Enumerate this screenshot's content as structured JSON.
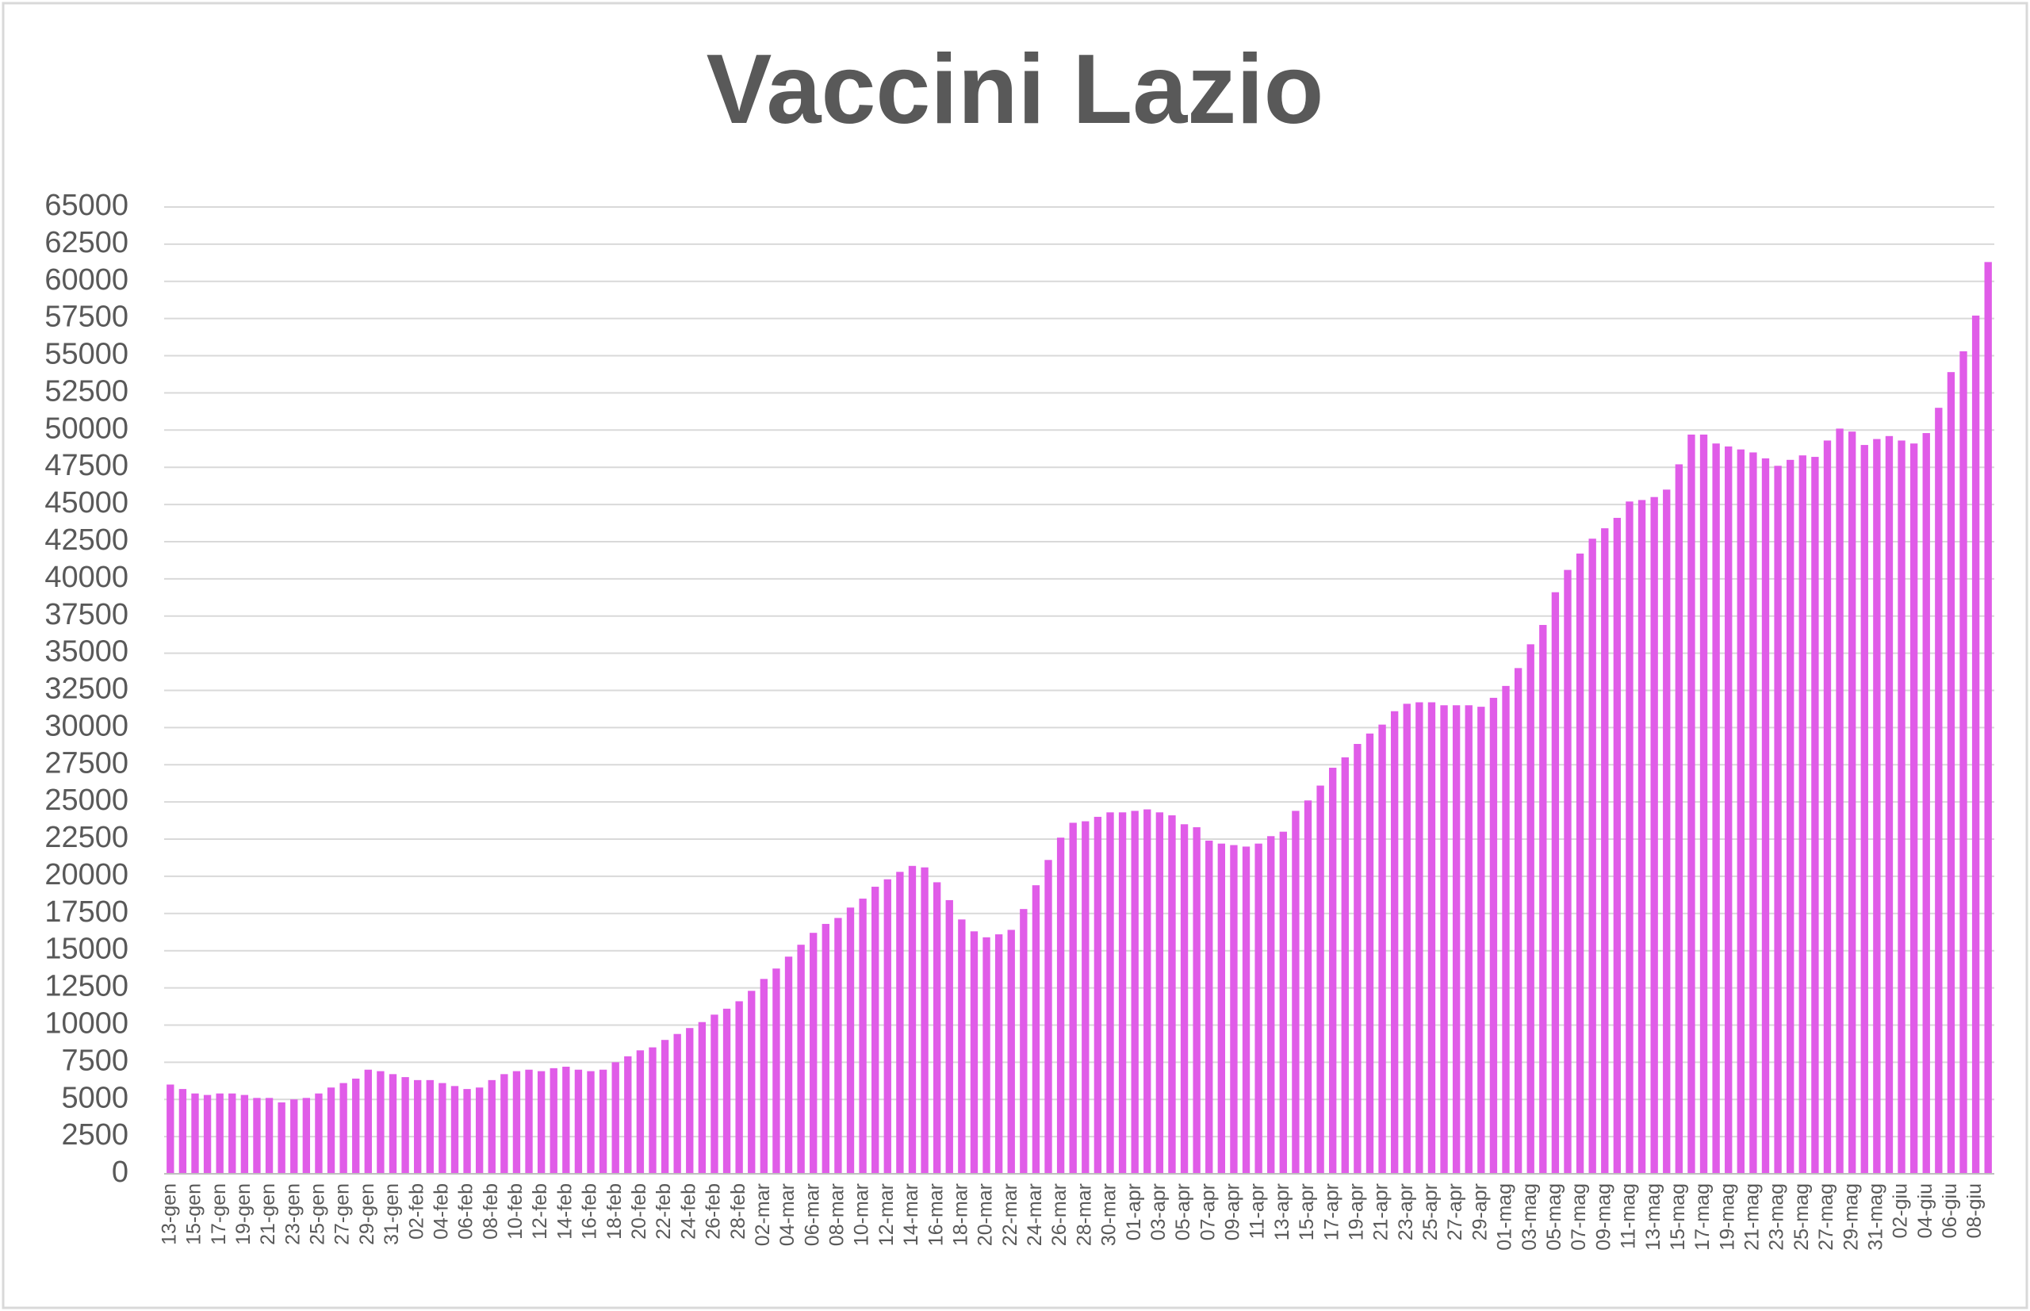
{
  "chart_data": {
    "type": "bar",
    "title": "Vaccini Lazio",
    "color": "#e05ce8",
    "grid": true,
    "ylim": [
      0,
      65000
    ],
    "yticks": [
      0,
      2500,
      5000,
      7500,
      10000,
      12500,
      15000,
      17500,
      20000,
      22500,
      25000,
      27500,
      30000,
      32500,
      35000,
      37500,
      40000,
      42500,
      45000,
      47500,
      50000,
      52500,
      55000,
      57500,
      60000,
      62500,
      65000
    ],
    "categories": [
      "13-gen",
      null,
      "15-gen",
      null,
      "17-gen",
      null,
      "19-gen",
      null,
      "21-gen",
      null,
      "23-gen",
      null,
      "25-gen",
      null,
      "27-gen",
      null,
      "29-gen",
      null,
      "31-gen",
      null,
      "02-feb",
      null,
      "04-feb",
      null,
      "06-feb",
      null,
      "08-feb",
      null,
      "10-feb",
      null,
      "12-feb",
      null,
      "14-feb",
      null,
      "16-feb",
      null,
      "18-feb",
      null,
      "20-feb",
      null,
      "22-feb",
      null,
      "24-feb",
      null,
      "26-feb",
      null,
      "28-feb",
      null,
      "02-mar",
      null,
      "04-mar",
      null,
      "06-mar",
      null,
      "08-mar",
      null,
      "10-mar",
      null,
      "12-mar",
      null,
      "14-mar",
      null,
      "16-mar",
      null,
      "18-mar",
      null,
      "20-mar",
      null,
      "22-mar",
      null,
      "24-mar",
      null,
      "26-mar",
      null,
      "28-mar",
      null,
      "30-mar",
      null,
      "01-apr",
      null,
      "03-apr",
      null,
      "05-apr",
      null,
      "07-apr",
      null,
      "09-apr",
      null,
      "11-apr",
      null,
      "13-apr",
      null,
      "15-apr",
      null,
      "17-apr",
      null,
      "19-apr",
      null,
      "21-apr",
      null,
      "23-apr",
      null,
      "25-apr",
      null,
      "27-apr",
      null,
      "29-apr",
      null,
      "01-mag",
      null,
      "03-mag",
      null,
      "05-mag",
      null,
      "07-mag",
      null,
      "09-mag",
      null,
      "11-mag",
      null,
      "13-mag",
      null,
      "15-mag",
      null,
      "17-mag",
      null,
      "19-mag",
      null,
      "21-mag",
      null,
      "23-mag",
      null,
      "25-mag",
      null,
      "27-mag",
      null,
      "29-mag",
      null,
      "31-mag",
      null,
      "02-giu",
      null,
      "04-giu",
      null,
      "06-giu",
      null,
      "08-giu",
      null
    ],
    "values": [
      6000,
      5700,
      5400,
      5300,
      5400,
      5400,
      5300,
      5100,
      5100,
      4800,
      5000,
      5100,
      5400,
      5800,
      6100,
      6400,
      7000,
      6900,
      6700,
      6500,
      6300,
      6300,
      6100,
      5900,
      5700,
      5800,
      6300,
      6700,
      6900,
      7000,
      6900,
      7100,
      7200,
      7000,
      6900,
      7000,
      7500,
      7900,
      8300,
      8500,
      9000,
      9400,
      9800,
      10200,
      10700,
      11100,
      11600,
      12300,
      13100,
      13800,
      14600,
      15400,
      16200,
      16800,
      17200,
      17900,
      18500,
      19300,
      19800,
      20300,
      20700,
      20600,
      19600,
      18400,
      17100,
      16300,
      15900,
      16100,
      16400,
      17800,
      19400,
      21100,
      22600,
      23600,
      23700,
      24000,
      24300,
      24300,
      24400,
      24500,
      24300,
      24100,
      23500,
      23300,
      22400,
      22200,
      22100,
      22000,
      22200,
      22700,
      23000,
      24400,
      25100,
      26100,
      27300,
      28000,
      28900,
      29600,
      30200,
      31100,
      31600,
      31700,
      31700,
      31500,
      31500,
      31500,
      31400,
      32000,
      32800,
      34000,
      35600,
      36900,
      39100,
      40600,
      41700,
      42700,
      43400,
      44100,
      45200,
      45300,
      45500,
      46000,
      47700,
      49700,
      49700,
      49100,
      48900,
      48700,
      48500,
      48100,
      47600,
      48000,
      48300,
      48200,
      49300,
      50100,
      49900,
      49000,
      49400,
      49600,
      49300,
      49100,
      49800,
      51500,
      53900,
      55300,
      57700,
      61300
    ]
  }
}
